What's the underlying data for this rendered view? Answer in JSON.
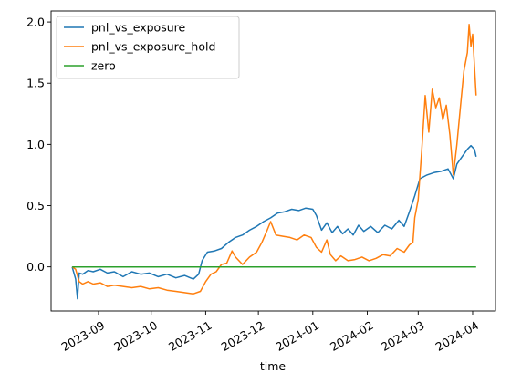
{
  "chart_data": {
    "type": "line",
    "title": "",
    "xlabel": "time",
    "ylabel": "",
    "xlim": [
      "2023-08-05",
      "2024-04-14"
    ],
    "ylim": [
      -0.36,
      2.09
    ],
    "grid": false,
    "legend_position": "top-left",
    "x_ticks": [
      "2023-09",
      "2023-10",
      "2023-11",
      "2023-12",
      "2024-01",
      "2024-02",
      "2024-03",
      "2024-04"
    ],
    "y_ticks": [
      "0.0",
      "0.5",
      "1.0",
      "1.5",
      "2.0"
    ],
    "series": [
      {
        "name": "pnl_vs_exposure",
        "color": "#1f77b4",
        "points": [
          [
            "2023-08-17",
            0.0
          ],
          [
            "2023-08-19",
            -0.1
          ],
          [
            "2023-08-20",
            -0.26
          ],
          [
            "2023-08-21",
            -0.05
          ],
          [
            "2023-08-23",
            -0.06
          ],
          [
            "2023-08-26",
            -0.03
          ],
          [
            "2023-08-29",
            -0.04
          ],
          [
            "2023-09-02",
            -0.02
          ],
          [
            "2023-09-06",
            -0.05
          ],
          [
            "2023-09-10",
            -0.04
          ],
          [
            "2023-09-15",
            -0.08
          ],
          [
            "2023-09-20",
            -0.04
          ],
          [
            "2023-09-25",
            -0.06
          ],
          [
            "2023-09-30",
            -0.05
          ],
          [
            "2023-10-05",
            -0.08
          ],
          [
            "2023-10-10",
            -0.06
          ],
          [
            "2023-10-15",
            -0.09
          ],
          [
            "2023-10-20",
            -0.07
          ],
          [
            "2023-10-25",
            -0.1
          ],
          [
            "2023-10-28",
            -0.06
          ],
          [
            "2023-10-30",
            0.05
          ],
          [
            "2023-11-02",
            0.12
          ],
          [
            "2023-11-06",
            0.13
          ],
          [
            "2023-11-10",
            0.15
          ],
          [
            "2023-11-14",
            0.2
          ],
          [
            "2023-11-18",
            0.24
          ],
          [
            "2023-11-22",
            0.26
          ],
          [
            "2023-11-26",
            0.3
          ],
          [
            "2023-11-30",
            0.33
          ],
          [
            "2023-12-04",
            0.37
          ],
          [
            "2023-12-08",
            0.4
          ],
          [
            "2023-12-12",
            0.44
          ],
          [
            "2023-12-16",
            0.45
          ],
          [
            "2023-12-20",
            0.47
          ],
          [
            "2023-12-24",
            0.46
          ],
          [
            "2023-12-28",
            0.48
          ],
          [
            "2024-01-01",
            0.47
          ],
          [
            "2024-01-03",
            0.42
          ],
          [
            "2024-01-06",
            0.3
          ],
          [
            "2024-01-09",
            0.36
          ],
          [
            "2024-01-12",
            0.28
          ],
          [
            "2024-01-15",
            0.33
          ],
          [
            "2024-01-18",
            0.27
          ],
          [
            "2024-01-21",
            0.31
          ],
          [
            "2024-01-24",
            0.26
          ],
          [
            "2024-01-27",
            0.34
          ],
          [
            "2024-01-30",
            0.29
          ],
          [
            "2024-02-03",
            0.33
          ],
          [
            "2024-02-07",
            0.28
          ],
          [
            "2024-02-11",
            0.34
          ],
          [
            "2024-02-15",
            0.31
          ],
          [
            "2024-02-19",
            0.38
          ],
          [
            "2024-02-22",
            0.33
          ],
          [
            "2024-02-25",
            0.45
          ],
          [
            "2024-02-28",
            0.58
          ],
          [
            "2024-03-02",
            0.72
          ],
          [
            "2024-03-06",
            0.75
          ],
          [
            "2024-03-10",
            0.77
          ],
          [
            "2024-03-14",
            0.78
          ],
          [
            "2024-03-18",
            0.8
          ],
          [
            "2024-03-21",
            0.72
          ],
          [
            "2024-03-23",
            0.84
          ],
          [
            "2024-03-26",
            0.9
          ],
          [
            "2024-03-29",
            0.96
          ],
          [
            "2024-03-31",
            0.99
          ],
          [
            "2024-04-02",
            0.96
          ],
          [
            "2024-04-03",
            0.9
          ]
        ]
      },
      {
        "name": "pnl_vs_exposure_hold",
        "color": "#ff7f0e",
        "points": [
          [
            "2023-08-17",
            0.0
          ],
          [
            "2023-08-19",
            -0.02
          ],
          [
            "2023-08-21",
            -0.12
          ],
          [
            "2023-08-23",
            -0.14
          ],
          [
            "2023-08-26",
            -0.12
          ],
          [
            "2023-08-29",
            -0.14
          ],
          [
            "2023-09-02",
            -0.13
          ],
          [
            "2023-09-06",
            -0.16
          ],
          [
            "2023-09-10",
            -0.15
          ],
          [
            "2023-09-15",
            -0.16
          ],
          [
            "2023-09-20",
            -0.17
          ],
          [
            "2023-09-25",
            -0.16
          ],
          [
            "2023-09-30",
            -0.18
          ],
          [
            "2023-10-05",
            -0.17
          ],
          [
            "2023-10-10",
            -0.19
          ],
          [
            "2023-10-15",
            -0.2
          ],
          [
            "2023-10-20",
            -0.21
          ],
          [
            "2023-10-25",
            -0.22
          ],
          [
            "2023-10-29",
            -0.2
          ],
          [
            "2023-11-01",
            -0.12
          ],
          [
            "2023-11-04",
            -0.06
          ],
          [
            "2023-11-07",
            -0.04
          ],
          [
            "2023-11-10",
            0.02
          ],
          [
            "2023-11-13",
            0.03
          ],
          [
            "2023-11-16",
            0.13
          ],
          [
            "2023-11-18",
            0.08
          ],
          [
            "2023-11-22",
            0.02
          ],
          [
            "2023-11-26",
            0.08
          ],
          [
            "2023-11-30",
            0.12
          ],
          [
            "2023-12-03",
            0.2
          ],
          [
            "2023-12-06",
            0.3
          ],
          [
            "2023-12-08",
            0.37
          ],
          [
            "2023-12-11",
            0.26
          ],
          [
            "2023-12-15",
            0.25
          ],
          [
            "2023-12-19",
            0.24
          ],
          [
            "2023-12-23",
            0.22
          ],
          [
            "2023-12-27",
            0.26
          ],
          [
            "2023-12-31",
            0.24
          ],
          [
            "2024-01-03",
            0.16
          ],
          [
            "2024-01-06",
            0.12
          ],
          [
            "2024-01-09",
            0.22
          ],
          [
            "2024-01-11",
            0.1
          ],
          [
            "2024-01-14",
            0.05
          ],
          [
            "2024-01-17",
            0.09
          ],
          [
            "2024-01-21",
            0.05
          ],
          [
            "2024-01-25",
            0.06
          ],
          [
            "2024-01-29",
            0.08
          ],
          [
            "2024-02-02",
            0.05
          ],
          [
            "2024-02-06",
            0.07
          ],
          [
            "2024-02-10",
            0.1
          ],
          [
            "2024-02-14",
            0.09
          ],
          [
            "2024-02-18",
            0.15
          ],
          [
            "2024-02-22",
            0.12
          ],
          [
            "2024-02-25",
            0.18
          ],
          [
            "2024-02-27",
            0.2
          ],
          [
            "2024-02-28",
            0.4
          ],
          [
            "2024-03-01",
            0.55
          ],
          [
            "2024-03-03",
            0.95
          ],
          [
            "2024-03-05",
            1.4
          ],
          [
            "2024-03-07",
            1.1
          ],
          [
            "2024-03-09",
            1.45
          ],
          [
            "2024-03-11",
            1.3
          ],
          [
            "2024-03-13",
            1.38
          ],
          [
            "2024-03-15",
            1.2
          ],
          [
            "2024-03-17",
            1.32
          ],
          [
            "2024-03-19",
            1.08
          ],
          [
            "2024-03-21",
            0.75
          ],
          [
            "2024-03-23",
            1.0
          ],
          [
            "2024-03-25",
            1.3
          ],
          [
            "2024-03-27",
            1.6
          ],
          [
            "2024-03-29",
            1.75
          ],
          [
            "2024-03-30",
            1.98
          ],
          [
            "2024-03-31",
            1.8
          ],
          [
            "2024-04-01",
            1.9
          ],
          [
            "2024-04-02",
            1.65
          ],
          [
            "2024-04-03",
            1.4
          ]
        ]
      },
      {
        "name": "zero",
        "color": "#2ca02c",
        "points": [
          [
            "2023-08-17",
            0.0
          ],
          [
            "2024-04-03",
            0.0
          ]
        ]
      }
    ]
  }
}
